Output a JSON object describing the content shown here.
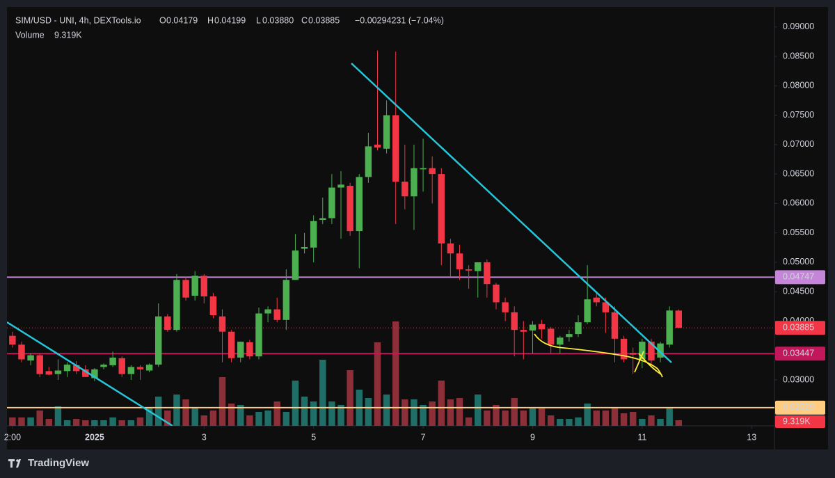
{
  "chart_data": {
    "type": "candlestick",
    "title": "SIM/USD - UNI, 4h, DEXTools.io",
    "header": {
      "open_label": "O",
      "open": "0.04179",
      "high_label": "H",
      "high": "0.04199",
      "low_label": "L",
      "low": "0.03880",
      "close_label": "C",
      "close": "0.03885",
      "change": "−0.00294231 (−7.04%)",
      "volume_label": "Volume"
    },
    "x": [
      -36,
      -32,
      -28,
      -24,
      -20,
      -16,
      -12,
      -8,
      -4,
      0,
      4,
      8,
      12,
      16,
      20,
      24,
      28,
      32,
      36,
      40,
      44,
      48,
      52,
      56,
      60,
      64,
      68,
      72,
      76,
      80,
      84,
      88,
      92,
      96,
      100,
      104,
      108,
      112,
      116,
      120,
      124,
      128,
      132,
      136,
      140,
      144,
      148,
      152,
      156,
      160,
      164,
      168,
      172,
      176,
      180,
      184,
      188,
      192,
      196,
      200,
      204,
      208,
      212,
      216,
      220,
      224,
      228,
      232,
      236,
      240,
      244,
      248,
      252,
      256
    ],
    "open": [
      0.0375,
      0.036,
      0.0333,
      0.0342,
      0.0315,
      0.031,
      0.0315,
      0.0325,
      0.0318,
      0.0303,
      0.0322,
      0.0325,
      0.0337,
      0.031,
      0.0322,
      0.0316,
      0.0326,
      0.0408,
      0.0385,
      0.047,
      0.0443,
      0.0477,
      0.0442,
      0.0408,
      0.0382,
      0.0338,
      0.0364,
      0.034,
      0.0413,
      0.042,
      0.0402,
      0.047,
      0.0523,
      0.0525,
      0.0572,
      0.0575,
      0.0627,
      0.063,
      0.0553,
      0.0645,
      0.07,
      0.0693,
      0.075,
      0.0637,
      0.0612,
      0.0658,
      0.066,
      0.065,
      0.0532,
      0.0515,
      0.0488,
      0.0485,
      0.05,
      0.0462,
      0.0432,
      0.0415,
      0.0385,
      0.0384,
      0.0395,
      0.0387,
      0.036,
      0.0373,
      0.0378,
      0.0398,
      0.044,
      0.0432,
      0.0415,
      0.037,
      0.0346,
      0.0335,
      0.0365,
      0.0338,
      0.036,
      0.04179
    ],
    "high": [
      0.0382,
      0.0365,
      0.0345,
      0.0345,
      0.0322,
      0.0335,
      0.033,
      0.0332,
      0.0325,
      0.032,
      0.0328,
      0.0348,
      0.034,
      0.0325,
      0.0325,
      0.0328,
      0.043,
      0.0412,
      0.048,
      0.0475,
      0.0485,
      0.048,
      0.0448,
      0.042,
      0.0385,
      0.0365,
      0.0368,
      0.0423,
      0.0425,
      0.044,
      0.0488,
      0.0548,
      0.055,
      0.058,
      0.061,
      0.065,
      0.0655,
      0.0635,
      0.065,
      0.072,
      0.086,
      0.0775,
      0.0858,
      0.07,
      0.07,
      0.071,
      0.068,
      0.066,
      0.054,
      0.053,
      0.0495,
      0.05,
      0.0505,
      0.0465,
      0.044,
      0.0425,
      0.04,
      0.04,
      0.0402,
      0.039,
      0.0375,
      0.0385,
      0.041,
      0.0495,
      0.045,
      0.044,
      0.0425,
      0.0375,
      0.0355,
      0.037,
      0.037,
      0.0365,
      0.0425,
      0.04199
    ],
    "low": [
      0.0355,
      0.033,
      0.0325,
      0.0305,
      0.0308,
      0.03,
      0.0305,
      0.031,
      0.0305,
      0.0298,
      0.0318,
      0.0322,
      0.0305,
      0.03,
      0.03,
      0.0313,
      0.0322,
      0.0382,
      0.0382,
      0.0435,
      0.0435,
      0.043,
      0.0405,
      0.033,
      0.033,
      0.033,
      0.0335,
      0.0335,
      0.0398,
      0.0398,
      0.0385,
      0.047,
      0.0515,
      0.05,
      0.0565,
      0.0565,
      0.054,
      0.0545,
      0.049,
      0.0635,
      0.069,
      0.0685,
      0.0565,
      0.059,
      0.0555,
      0.062,
      0.06,
      0.0495,
      0.0475,
      0.047,
      0.0455,
      0.044,
      0.044,
      0.042,
      0.04,
      0.034,
      0.0335,
      0.0345,
      0.037,
      0.0345,
      0.0345,
      0.0365,
      0.0373,
      0.0395,
      0.0425,
      0.038,
      0.033,
      0.033,
      0.031,
      0.032,
      0.0325,
      0.033,
      0.0355,
      0.0388
    ],
    "close": [
      0.036,
      0.0335,
      0.0342,
      0.031,
      0.0309,
      0.0316,
      0.0326,
      0.0315,
      0.0305,
      0.0318,
      0.0326,
      0.0338,
      0.031,
      0.0322,
      0.0318,
      0.0326,
      0.0408,
      0.0385,
      0.047,
      0.044,
      0.0477,
      0.0442,
      0.041,
      0.0382,
      0.0337,
      0.0365,
      0.034,
      0.0413,
      0.042,
      0.0402,
      0.047,
      0.052,
      0.0526,
      0.057,
      0.0575,
      0.0627,
      0.0632,
      0.0553,
      0.0645,
      0.0697,
      0.0695,
      0.075,
      0.0637,
      0.0612,
      0.066,
      0.066,
      0.065,
      0.0532,
      0.0515,
      0.0488,
      0.0486,
      0.05,
      0.0463,
      0.0432,
      0.0415,
      0.0385,
      0.0382,
      0.0394,
      0.0386,
      0.036,
      0.0372,
      0.0378,
      0.0398,
      0.0437,
      0.0432,
      0.0415,
      0.037,
      0.0335,
      0.0343,
      0.0365,
      0.0333,
      0.0362,
      0.0418,
      0.03885
    ],
    "volume": [
      14000,
      14000,
      14000,
      25600,
      11600,
      32600,
      9300,
      11600,
      9300,
      9300,
      9300,
      14000,
      9300,
      9300,
      14000,
      29100,
      48800,
      25600,
      52300,
      44200,
      29100,
      17400,
      25600,
      81400,
      37200,
      34900,
      17400,
      23300,
      25600,
      40700,
      23300,
      75600,
      48800,
      40700,
      110500,
      40700,
      34900,
      93000,
      60500,
      46500,
      139600,
      52300,
      174500,
      44200,
      44200,
      34900,
      40700,
      75600,
      44200,
      46500,
      14000,
      52300,
      25600,
      34900,
      25600,
      46500,
      25600,
      29100,
      29100,
      17400,
      11600,
      11600,
      14000,
      37200,
      25600,
      25600,
      29100,
      20900,
      23300,
      11600,
      17400,
      11600,
      29100,
      9319
    ],
    "last_volume_label": "9.319K",
    "xlim": [
      -38.4,
      298
    ],
    "xticks": [
      {
        "value": -36,
        "label": "2:00"
      },
      {
        "value": 0,
        "label": "2025"
      },
      {
        "value": 48,
        "label": "3"
      },
      {
        "value": 96,
        "label": "5"
      },
      {
        "value": 144,
        "label": "7"
      },
      {
        "value": 192,
        "label": "9"
      },
      {
        "value": 240,
        "label": "11"
      },
      {
        "value": 288,
        "label": "13"
      }
    ],
    "ylim": [
      0.0222,
      0.0934
    ],
    "yticks": [
      {
        "value": 0.09,
        "label": "0.09000"
      },
      {
        "value": 0.085,
        "label": "0.08500"
      },
      {
        "value": 0.08,
        "label": "0.08000"
      },
      {
        "value": 0.075,
        "label": "0.07500"
      },
      {
        "value": 0.07,
        "label": "0.07000"
      },
      {
        "value": 0.065,
        "label": "0.06500"
      },
      {
        "value": 0.06,
        "label": "0.06000"
      },
      {
        "value": 0.055,
        "label": "0.05500"
      },
      {
        "value": 0.05,
        "label": "0.05000"
      },
      {
        "value": 0.045,
        "label": "0.04500"
      },
      {
        "value": 0.04,
        "label": "0.04000"
      },
      {
        "value": 0.03,
        "label": "0.03000"
      }
    ],
    "volume_lim": [
      0,
      700000
    ],
    "grid": false,
    "up_color": "#4caf50",
    "down_color": "#f23645",
    "volume_up_color": "#1f6f68",
    "volume_down_color": "#8c2f38",
    "price_lines": [
      {
        "value": 0.04747,
        "color": "#c586d9",
        "text_color": "#131722"
      },
      {
        "value": 0.03447,
        "color": "#c2185b",
        "text_color": "#ffffff"
      },
      {
        "value": 0.02529,
        "color": "#ffcc80",
        "text_color": "#131722"
      }
    ],
    "last_price_line": {
      "value": 0.03885,
      "color": "#f23645"
    },
    "brand": "TradingView"
  }
}
